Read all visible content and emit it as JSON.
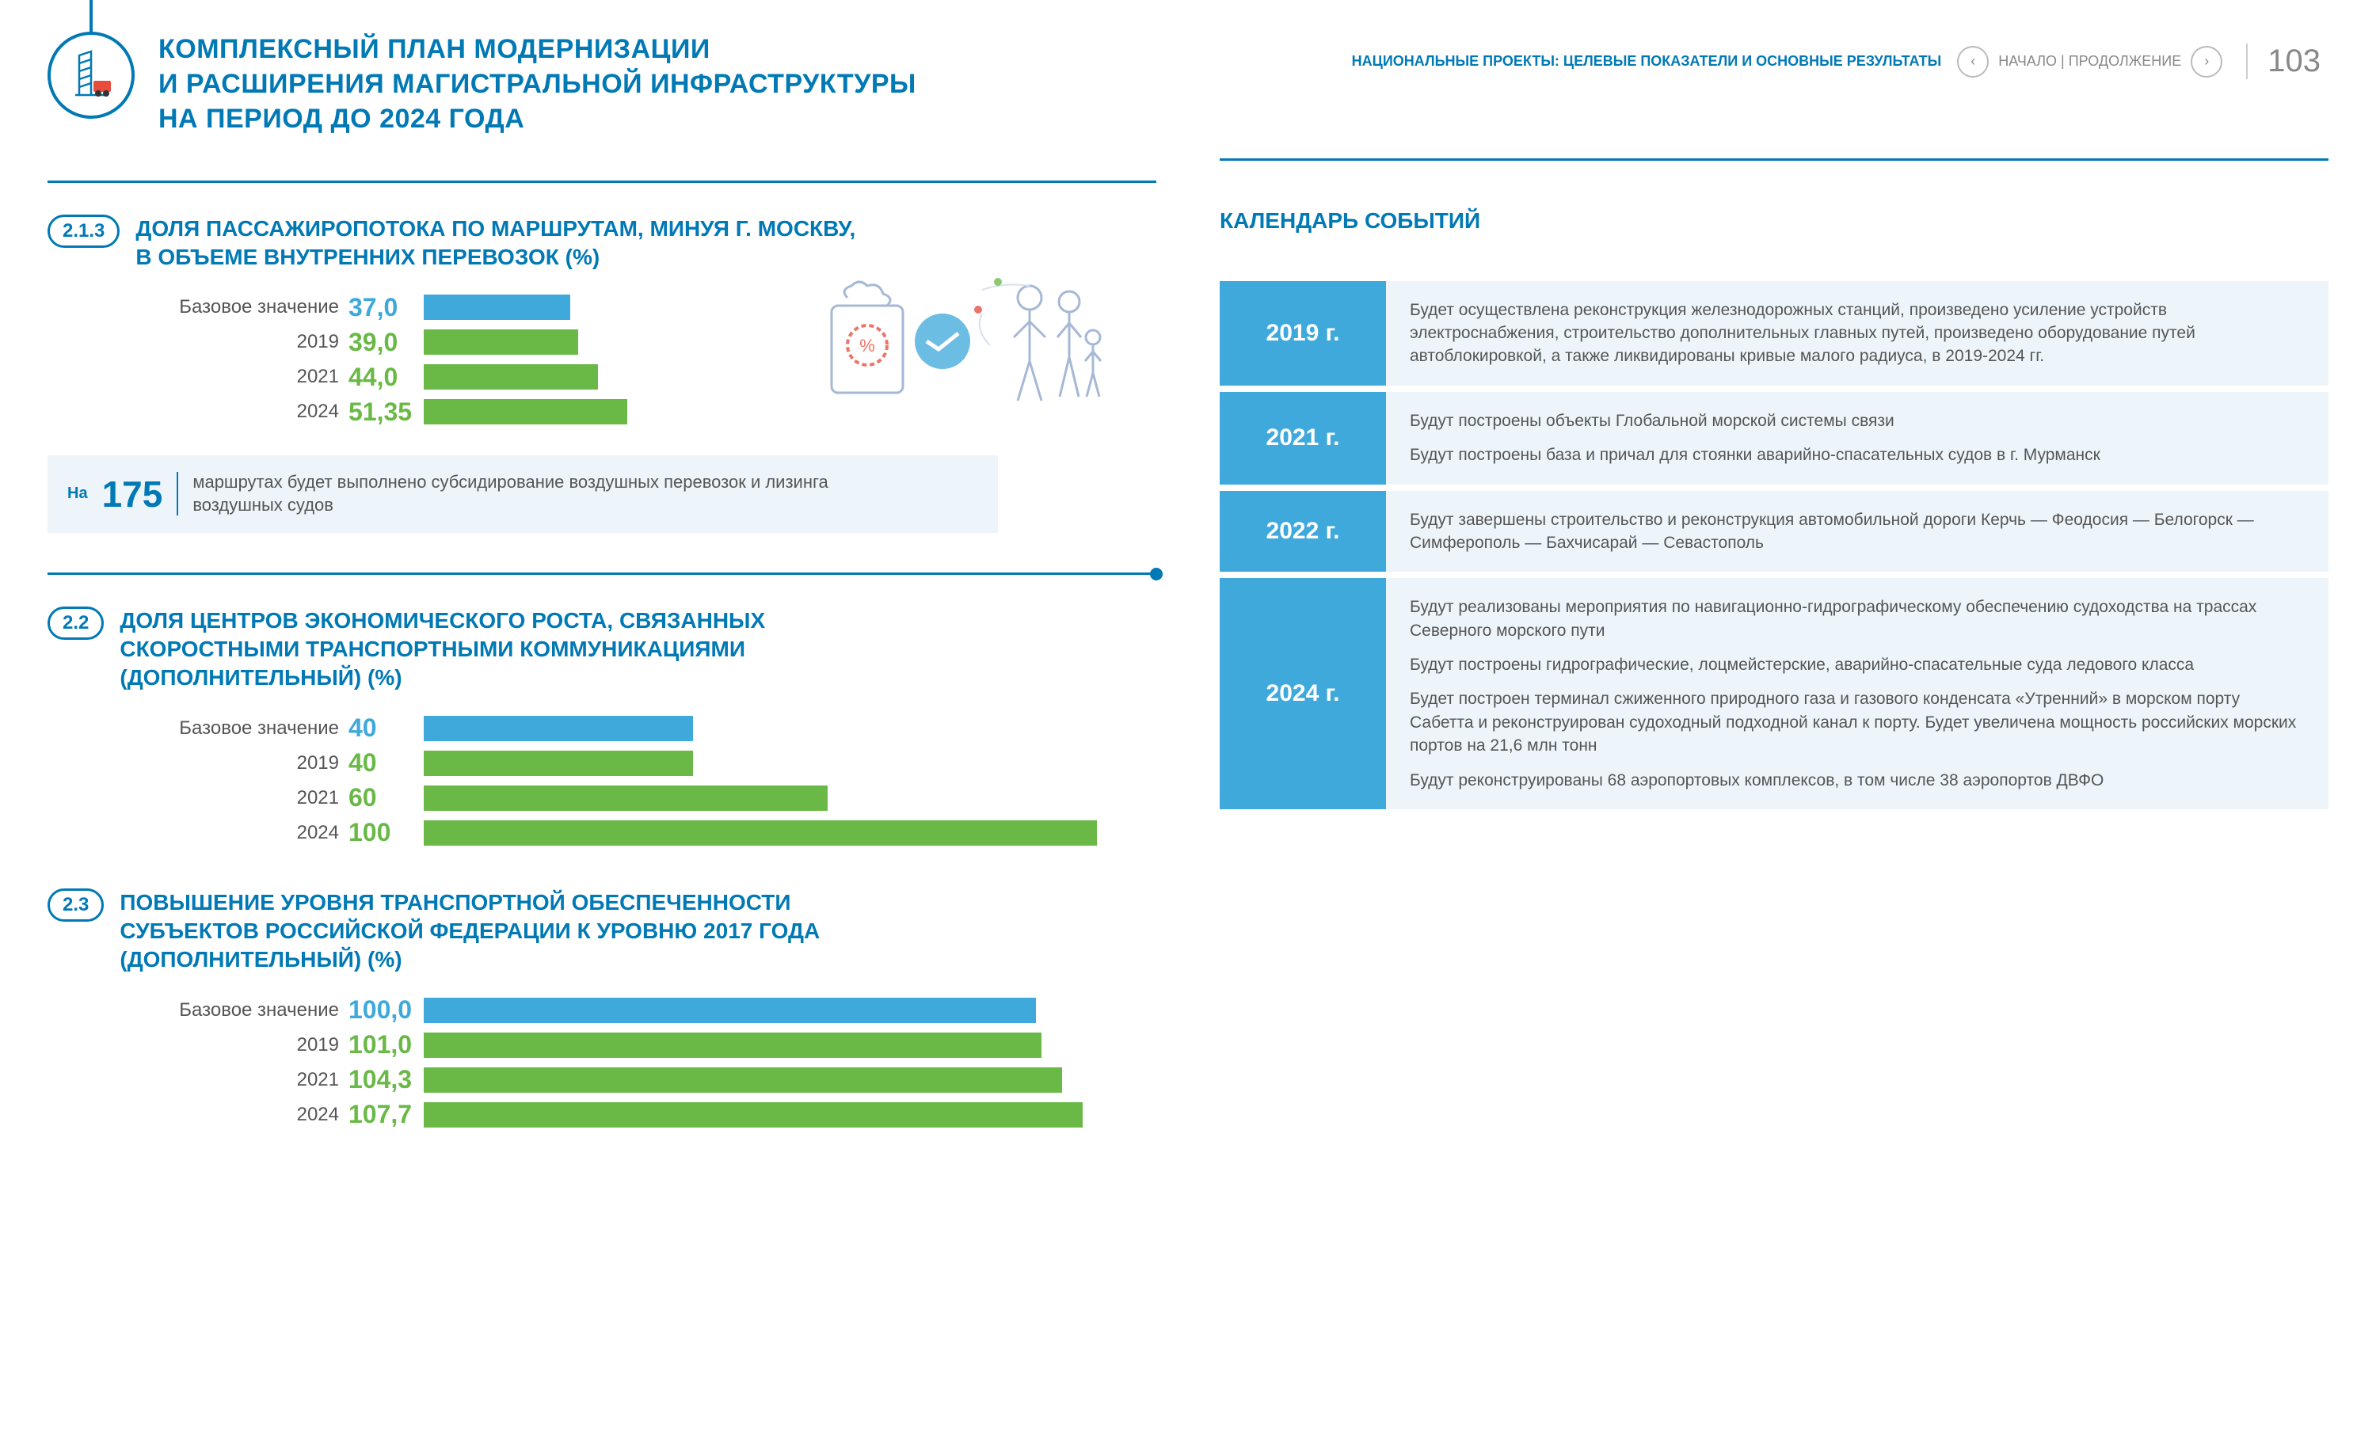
{
  "header": {
    "title": "КОМПЛЕКСНЫЙ ПЛАН МОДЕРНИЗАЦИИ\nИ РАСШИРЕНИЯ МАГИСТРАЛЬНОЙ ИНФРАСТРУКТУРЫ\nНА ПЕРИОД ДО 2024 ГОДА",
    "subtitle": "НАЦИОНАЛЬНЫЕ ПРОЕКТЫ: ЦЕЛЕВЫЕ ПОКАЗАТЕЛИ И ОСНОВНЫЕ РЕЗУЛЬТАТЫ",
    "nav_text": "НАЧАЛО | ПРОДОЛЖЕНИЕ",
    "page_number": "103"
  },
  "colors": {
    "primary_blue": "#0079b5",
    "bar_blue": "#3fa9dc",
    "bar_green": "#6ab947",
    "text_grey": "#555555",
    "light_bg": "#eef5fa"
  },
  "sections": [
    {
      "badge": "2.1.3",
      "title": "ДОЛЯ ПАССАЖИРОПОТОКА ПО МАРШРУТАМ, МИНУЯ Г. МОСКВУ,\nВ ОБЪЕМЕ ВНУТРЕННИХ ПЕРЕВОЗОК (%)",
      "chart": {
        "type": "bar",
        "max": 100,
        "rows": [
          {
            "label": "Базовое значение",
            "value": "37,0",
            "pct": 37,
            "color": "#3fa9dc",
            "vcolor": "#3fa9dc"
          },
          {
            "label": "2019",
            "value": "39,0",
            "pct": 39,
            "color": "#6ab947",
            "vcolor": "#6ab947"
          },
          {
            "label": "2021",
            "value": "44,0",
            "pct": 44,
            "color": "#6ab947",
            "vcolor": "#6ab947"
          },
          {
            "label": "2024",
            "value": "51,35",
            "pct": 51.35,
            "color": "#6ab947",
            "vcolor": "#6ab947"
          }
        ]
      },
      "callout": {
        "prefix": "На",
        "number": "175",
        "text": "маршрутах будет выполнено субсидирование воздушных перевозок и лизинга\nвоздушных судов"
      },
      "has_illustration": true
    },
    {
      "badge": "2.2",
      "title": "ДОЛЯ ЦЕНТРОВ ЭКОНОМИЧЕСКОГО РОСТА, СВЯЗАННЫХ\nСКОРОСТНЫМИ ТРАНСПОРТНЫМИ КОММУНИКАЦИЯМИ\n(ДОПОЛНИТЕЛЬНЫЙ) (%)",
      "chart": {
        "type": "bar",
        "max": 100,
        "rows": [
          {
            "label": "Базовое значение",
            "value": "40",
            "pct": 40,
            "color": "#3fa9dc",
            "vcolor": "#3fa9dc"
          },
          {
            "label": "2019",
            "value": "40",
            "pct": 40,
            "color": "#6ab947",
            "vcolor": "#6ab947"
          },
          {
            "label": "2021",
            "value": "60",
            "pct": 60,
            "color": "#6ab947",
            "vcolor": "#6ab947"
          },
          {
            "label": "2024",
            "value": "100",
            "pct": 100,
            "color": "#6ab947",
            "vcolor": "#6ab947"
          }
        ]
      }
    },
    {
      "badge": "2.3",
      "title": "ПОВЫШЕНИЕ УРОВНЯ ТРАНСПОРТНОЙ ОБЕСПЕЧЕННОСТИ\nСУБЪЕКТОВ РОССИЙСКОЙ ФЕДЕРАЦИИ К УРОВНЮ 2017 ГОДА\n(ДОПОЛНИТЕЛЬНЫЙ) (%)",
      "chart": {
        "type": "bar",
        "max": 110,
        "rows": [
          {
            "label": "Базовое значение",
            "value": "100,0",
            "pct": 100,
            "color": "#3fa9dc",
            "vcolor": "#3fa9dc"
          },
          {
            "label": "2019",
            "value": "101,0",
            "pct": 101,
            "color": "#6ab947",
            "vcolor": "#6ab947"
          },
          {
            "label": "2021",
            "value": "104,3",
            "pct": 104.3,
            "color": "#6ab947",
            "vcolor": "#6ab947"
          },
          {
            "label": "2024",
            "value": "107,7",
            "pct": 107.7,
            "color": "#6ab947",
            "vcolor": "#6ab947"
          }
        ]
      }
    }
  ],
  "calendar": {
    "title": "КАЛЕНДАРЬ СОБЫТИЙ",
    "events": [
      {
        "year": "2019 г.",
        "paragraphs": [
          "Будет осуществлена реконструкция железнодорожных станций, произведено усиление устройств электроснабжения, строительство дополнительных главных путей, произведено оборудование путей автоблокировкой, а также ликвидированы кривые малого радиуса, в 2019-2024 гг."
        ]
      },
      {
        "year": "2021 г.",
        "paragraphs": [
          "Будут построены объекты Глобальной морской системы связи",
          "Будут построены база и причал для стоянки аварийно-спасательных судов в г. Мурманск"
        ]
      },
      {
        "year": "2022 г.",
        "paragraphs": [
          "Будут завершены строительство и реконструкция автомобильной дороги Керчь — Феодосия — Белогорск — Симферополь — Бахчисарай — Севастополь"
        ]
      },
      {
        "year": "2024 г.",
        "paragraphs": [
          "Будут реализованы мероприятия по навигационно-гидрографическому обеспечению судоходства на трассах Северного морского пути",
          "Будут построены гидрографические, лоцмейстерские, аварийно-спасательные суда ледового класса",
          "Будет построен терминал сжиженного природного газа и газового конденсата «Утренний» в морском порту Сабетта и реконструирован судоходный подходной канал к порту. Будет увеличена мощность российских морских портов на 21,6 млн тонн",
          "Будут реконструированы 68 аэропортовых комплексов, в том числе 38 аэропортов ДВФО"
        ]
      }
    ]
  }
}
